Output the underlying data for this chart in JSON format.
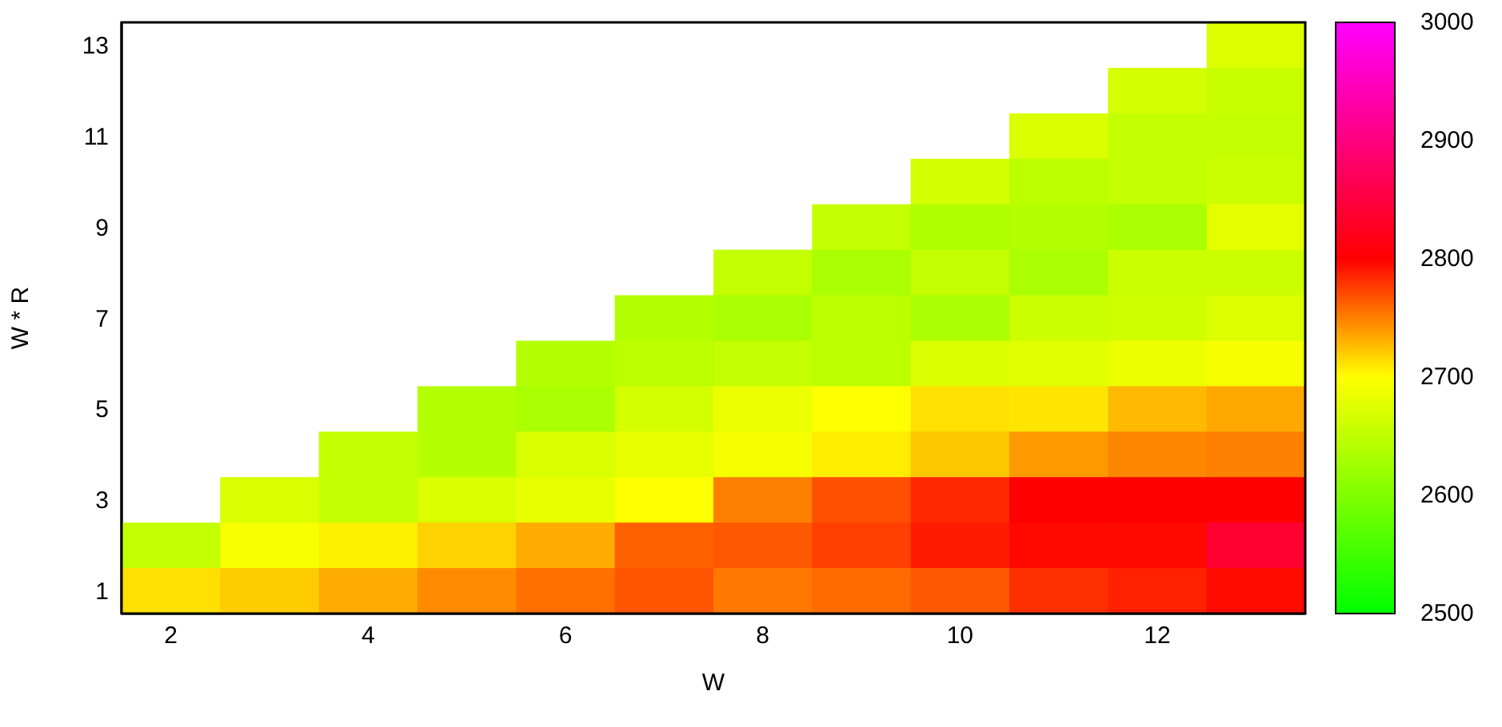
{
  "chart_data": {
    "type": "heatmap",
    "xlabel": "W",
    "ylabel": "W * R",
    "categories": [
      "2",
      null,
      "4",
      null,
      "6",
      null,
      "8",
      null,
      "10",
      null,
      "12",
      null
    ],
    "y_categories": [
      "13",
      null,
      "11",
      null,
      "9",
      null,
      "7",
      null,
      "5",
      null,
      "3",
      null,
      "1"
    ],
    "cells": [
      [
        null,
        null,
        null,
        null,
        null,
        null,
        null,
        null,
        null,
        null,
        null,
        2672
      ],
      [
        null,
        null,
        null,
        null,
        null,
        null,
        null,
        null,
        null,
        null,
        2666,
        2657
      ],
      [
        null,
        null,
        null,
        null,
        null,
        null,
        null,
        null,
        null,
        2670,
        2654,
        2654
      ],
      [
        null,
        null,
        null,
        null,
        null,
        null,
        null,
        null,
        2666,
        2647,
        2654,
        2660
      ],
      [
        null,
        null,
        null,
        null,
        null,
        null,
        null,
        2654,
        2637,
        2641,
        2633,
        2680
      ],
      [
        null,
        null,
        null,
        null,
        null,
        null,
        2654,
        2633,
        2654,
        2633,
        2660,
        2660
      ],
      [
        null,
        null,
        null,
        null,
        null,
        2641,
        2633,
        2647,
        2633,
        2660,
        2663,
        2672
      ],
      [
        null,
        null,
        null,
        null,
        2641,
        2647,
        2654,
        2647,
        2670,
        2676,
        2687,
        2692
      ],
      [
        null,
        null,
        null,
        2641,
        2633,
        2666,
        2684,
        2700,
        2712,
        2710,
        2727,
        2734
      ],
      [
        null,
        null,
        2654,
        2641,
        2670,
        2682,
        2692,
        2707,
        2722,
        2740,
        2747,
        2750
      ],
      [
        null,
        2670,
        2654,
        2670,
        2682,
        2700,
        2750,
        2769,
        2784,
        2800,
        2800,
        2800
      ],
      [
        2654,
        2694,
        2706,
        2718,
        2733,
        2762,
        2765,
        2775,
        2790,
        2797,
        2797,
        2838
      ],
      [
        2712,
        2720,
        2733,
        2745,
        2756,
        2767,
        2753,
        2758,
        2765,
        2781,
        2787,
        2796
      ]
    ],
    "clim": [
      2500,
      3000
    ],
    "cticks": [
      2500,
      2600,
      2700,
      2800,
      2900,
      3000
    ]
  }
}
